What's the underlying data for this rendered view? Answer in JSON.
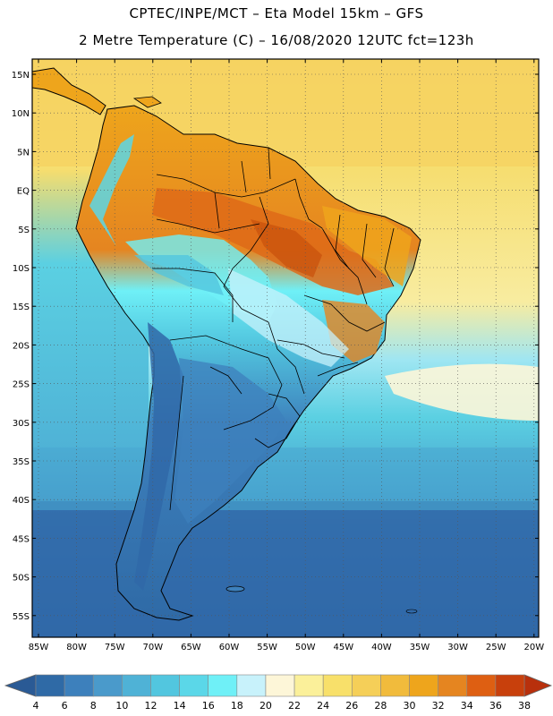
{
  "title_line1": "CPTEC/INPE/MCT –  Eta Model 15km – GFS",
  "title_line2": "2 Metre Temperature (C) – 16/08/2020 12UTC fct=123h",
  "lat_labels": [
    "15N",
    "10N",
    "5N",
    "EQ",
    "5S",
    "10S",
    "15S",
    "20S",
    "25S",
    "30S",
    "35S",
    "40S",
    "45S",
    "50S",
    "55S"
  ],
  "lon_labels": [
    "85W",
    "80W",
    "75W",
    "70W",
    "65W",
    "60W",
    "55W",
    "50W",
    "45W",
    "40W",
    "35W",
    "30W",
    "25W",
    "20W"
  ],
  "colorbar": {
    "labels": [
      "4",
      "6",
      "8",
      "10",
      "12",
      "14",
      "16",
      "18",
      "20",
      "22",
      "24",
      "26",
      "28",
      "30",
      "32",
      "34",
      "36",
      "38"
    ],
    "colors": [
      "#2f6aa6",
      "#3d80bc",
      "#4a9acb",
      "#4fb2d6",
      "#52c6df",
      "#5bd7e8",
      "#6ff0f7",
      "#c8f2fb",
      "#fdf6d8",
      "#fbf09a",
      "#f8e06a",
      "#f5cf58",
      "#f1bb3c",
      "#eea51c",
      "#e58520",
      "#de5f12",
      "#c8400c"
    ],
    "low_arrow_color": "#2a5a95",
    "high_arrow_color": "#b8300c"
  },
  "map_colors": {
    "ocean_cold": "#3068a8",
    "ocean_mid": "#4aa6d0",
    "ocean_warm": "#5bd0e2",
    "tropical_sea": "#f6dd6e",
    "north_atlantic": "#f3cf5a",
    "amazon_hot": "#e07c22",
    "land_warm": "#eea81e",
    "andes": "#3d80bc",
    "coast_line": "#000000"
  }
}
